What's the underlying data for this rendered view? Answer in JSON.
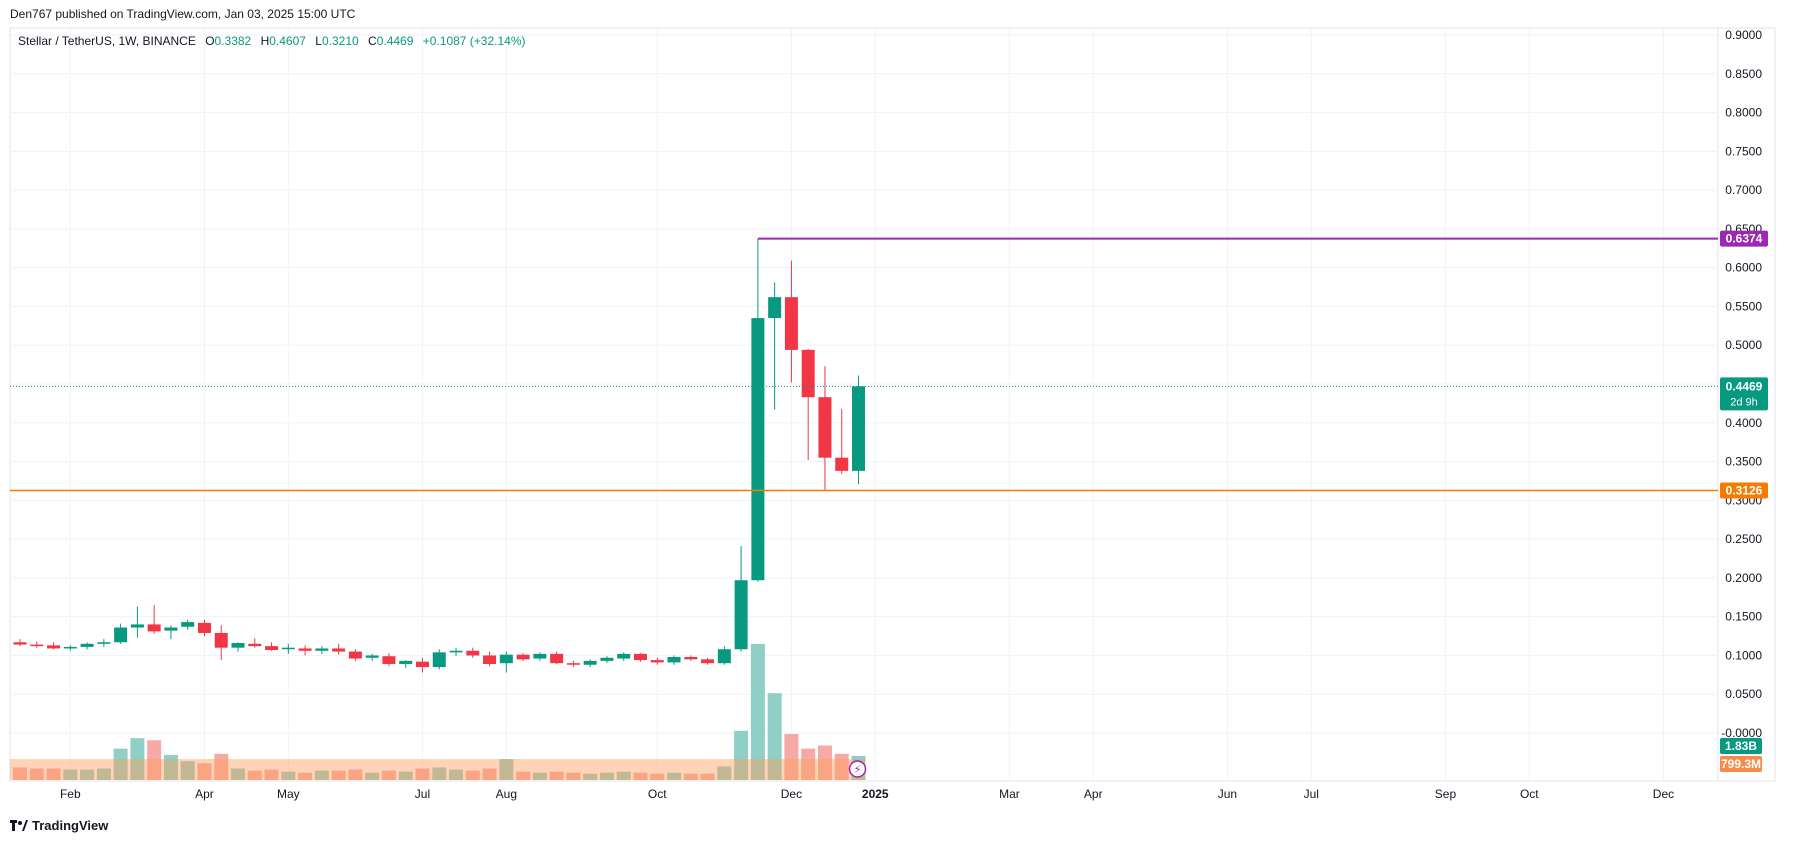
{
  "header": {
    "publisher_line": "Den767 published on TradingView.com, Jan 03, 2025 15:00 UTC"
  },
  "legend": {
    "symbol": "Stellar / TetherUS, 1W, BINANCE",
    "o_label": "O",
    "o_value": "0.3382",
    "h_label": "H",
    "h_value": "0.4607",
    "l_label": "L",
    "l_value": "0.3210",
    "c_label": "C",
    "c_value": "0.4469",
    "change": "+0.1087 (+32.14%)"
  },
  "footer": {
    "brand": "TradingView"
  },
  "colors": {
    "up": "#089981",
    "down": "#f23645",
    "vol_up": "#8fcfc6",
    "vol_down": "#f7a9a7",
    "resistance": "#9c27b0",
    "support": "#f57c00",
    "grid": "#f0f3fa",
    "axis_text": "#131722"
  },
  "chart_data": {
    "type": "candlestick",
    "ylim": [
      -0.0,
      0.9
    ],
    "y_ticks": [
      "0.9000",
      "0.8500",
      "0.8000",
      "0.7500",
      "0.7000",
      "0.6500",
      "0.6000",
      "0.5500",
      "0.5000",
      "0.4500",
      "0.4000",
      "0.3500",
      "0.3000",
      "0.2500",
      "0.2000",
      "0.1500",
      "0.1000",
      "0.0500",
      "-0.0000"
    ],
    "x_ticks": [
      {
        "label": "Feb",
        "week": 3
      },
      {
        "label": "Apr",
        "week": 11
      },
      {
        "label": "May",
        "week": 16
      },
      {
        "label": "Jul",
        "week": 24
      },
      {
        "label": "Aug",
        "week": 29
      },
      {
        "label": "Oct",
        "week": 38
      },
      {
        "label": "Dec",
        "week": 46
      },
      {
        "label": "2025",
        "week": 51
      },
      {
        "label": "Mar",
        "week": 59
      },
      {
        "label": "Apr",
        "week": 64
      },
      {
        "label": "Jun",
        "week": 72
      },
      {
        "label": "Jul",
        "week": 77
      },
      {
        "label": "Sep",
        "week": 85
      },
      {
        "label": "Oct",
        "week": 90
      },
      {
        "label": "Dec",
        "week": 98
      }
    ],
    "candles": [
      {
        "o": 0.117,
        "h": 0.121,
        "l": 0.112,
        "c": 0.114,
        "v": 0.12
      },
      {
        "o": 0.114,
        "h": 0.118,
        "l": 0.11,
        "c": 0.112,
        "v": 0.11
      },
      {
        "o": 0.113,
        "h": 0.117,
        "l": 0.108,
        "c": 0.109,
        "v": 0.11
      },
      {
        "o": 0.109,
        "h": 0.113,
        "l": 0.106,
        "c": 0.111,
        "v": 0.1
      },
      {
        "o": 0.111,
        "h": 0.117,
        "l": 0.108,
        "c": 0.115,
        "v": 0.1
      },
      {
        "o": 0.115,
        "h": 0.121,
        "l": 0.111,
        "c": 0.117,
        "v": 0.11
      },
      {
        "o": 0.117,
        "h": 0.141,
        "l": 0.115,
        "c": 0.136,
        "v": 0.3
      },
      {
        "o": 0.136,
        "h": 0.163,
        "l": 0.123,
        "c": 0.14,
        "v": 0.4
      },
      {
        "o": 0.14,
        "h": 0.165,
        "l": 0.128,
        "c": 0.131,
        "v": 0.38
      },
      {
        "o": 0.132,
        "h": 0.139,
        "l": 0.121,
        "c": 0.136,
        "v": 0.24
      },
      {
        "o": 0.137,
        "h": 0.146,
        "l": 0.133,
        "c": 0.143,
        "v": 0.18
      },
      {
        "o": 0.142,
        "h": 0.146,
        "l": 0.125,
        "c": 0.129,
        "v": 0.16
      },
      {
        "o": 0.129,
        "h": 0.139,
        "l": 0.094,
        "c": 0.11,
        "v": 0.25
      },
      {
        "o": 0.11,
        "h": 0.117,
        "l": 0.105,
        "c": 0.116,
        "v": 0.11
      },
      {
        "o": 0.115,
        "h": 0.122,
        "l": 0.11,
        "c": 0.112,
        "v": 0.09
      },
      {
        "o": 0.112,
        "h": 0.117,
        "l": 0.106,
        "c": 0.107,
        "v": 0.1
      },
      {
        "o": 0.108,
        "h": 0.115,
        "l": 0.102,
        "c": 0.11,
        "v": 0.08
      },
      {
        "o": 0.109,
        "h": 0.113,
        "l": 0.1,
        "c": 0.106,
        "v": 0.07
      },
      {
        "o": 0.106,
        "h": 0.112,
        "l": 0.102,
        "c": 0.109,
        "v": 0.09
      },
      {
        "o": 0.109,
        "h": 0.115,
        "l": 0.101,
        "c": 0.105,
        "v": 0.09
      },
      {
        "o": 0.105,
        "h": 0.108,
        "l": 0.093,
        "c": 0.096,
        "v": 0.1
      },
      {
        "o": 0.097,
        "h": 0.102,
        "l": 0.093,
        "c": 0.1,
        "v": 0.07
      },
      {
        "o": 0.099,
        "h": 0.103,
        "l": 0.086,
        "c": 0.089,
        "v": 0.09
      },
      {
        "o": 0.089,
        "h": 0.094,
        "l": 0.084,
        "c": 0.093,
        "v": 0.08
      },
      {
        "o": 0.092,
        "h": 0.097,
        "l": 0.078,
        "c": 0.085,
        "v": 0.11
      },
      {
        "o": 0.085,
        "h": 0.108,
        "l": 0.082,
        "c": 0.104,
        "v": 0.12
      },
      {
        "o": 0.104,
        "h": 0.11,
        "l": 0.099,
        "c": 0.106,
        "v": 0.1
      },
      {
        "o": 0.106,
        "h": 0.11,
        "l": 0.097,
        "c": 0.1,
        "v": 0.09
      },
      {
        "o": 0.1,
        "h": 0.105,
        "l": 0.086,
        "c": 0.089,
        "v": 0.11
      },
      {
        "o": 0.09,
        "h": 0.105,
        "l": 0.078,
        "c": 0.101,
        "v": 0.2
      },
      {
        "o": 0.101,
        "h": 0.103,
        "l": 0.093,
        "c": 0.095,
        "v": 0.08
      },
      {
        "o": 0.096,
        "h": 0.104,
        "l": 0.093,
        "c": 0.102,
        "v": 0.07
      },
      {
        "o": 0.102,
        "h": 0.105,
        "l": 0.089,
        "c": 0.09,
        "v": 0.08
      },
      {
        "o": 0.09,
        "h": 0.093,
        "l": 0.085,
        "c": 0.088,
        "v": 0.07
      },
      {
        "o": 0.088,
        "h": 0.095,
        "l": 0.085,
        "c": 0.093,
        "v": 0.06
      },
      {
        "o": 0.093,
        "h": 0.099,
        "l": 0.09,
        "c": 0.097,
        "v": 0.07
      },
      {
        "o": 0.096,
        "h": 0.104,
        "l": 0.093,
        "c": 0.102,
        "v": 0.08
      },
      {
        "o": 0.102,
        "h": 0.103,
        "l": 0.092,
        "c": 0.094,
        "v": 0.07
      },
      {
        "o": 0.094,
        "h": 0.097,
        "l": 0.088,
        "c": 0.091,
        "v": 0.06
      },
      {
        "o": 0.091,
        "h": 0.1,
        "l": 0.088,
        "c": 0.098,
        "v": 0.07
      },
      {
        "o": 0.098,
        "h": 0.1,
        "l": 0.093,
        "c": 0.095,
        "v": 0.06
      },
      {
        "o": 0.095,
        "h": 0.097,
        "l": 0.088,
        "c": 0.09,
        "v": 0.06
      },
      {
        "o": 0.09,
        "h": 0.112,
        "l": 0.088,
        "c": 0.108,
        "v": 0.13
      },
      {
        "o": 0.108,
        "h": 0.241,
        "l": 0.105,
        "c": 0.197,
        "v": 0.47
      },
      {
        "o": 0.197,
        "h": 0.637,
        "l": 0.195,
        "c": 0.535,
        "v": 1.3
      },
      {
        "o": 0.535,
        "h": 0.581,
        "l": 0.417,
        "c": 0.562,
        "v": 0.83
      },
      {
        "o": 0.562,
        "h": 0.609,
        "l": 0.452,
        "c": 0.494,
        "v": 0.44
      },
      {
        "o": 0.494,
        "h": 0.495,
        "l": 0.352,
        "c": 0.433,
        "v": 0.3
      },
      {
        "o": 0.433,
        "h": 0.473,
        "l": 0.312,
        "c": 0.355,
        "v": 0.33
      },
      {
        "o": 0.355,
        "h": 0.418,
        "l": 0.334,
        "c": 0.338,
        "v": 0.25
      },
      {
        "o": 0.338,
        "h": 0.461,
        "l": 0.321,
        "c": 0.447,
        "v": 0.23
      }
    ],
    "price_lines": [
      {
        "label": "0.6374",
        "value": 0.6374,
        "role": "resistance"
      },
      {
        "label": "0.3126",
        "value": 0.3126,
        "role": "support"
      }
    ],
    "last_price": {
      "label": "0.4469",
      "value": 0.4469,
      "countdown": "2d 9h"
    },
    "volume_labels": {
      "volume": "1.83B",
      "vol_ma": "799.3M",
      "vol_ma_level": 0.2
    }
  }
}
